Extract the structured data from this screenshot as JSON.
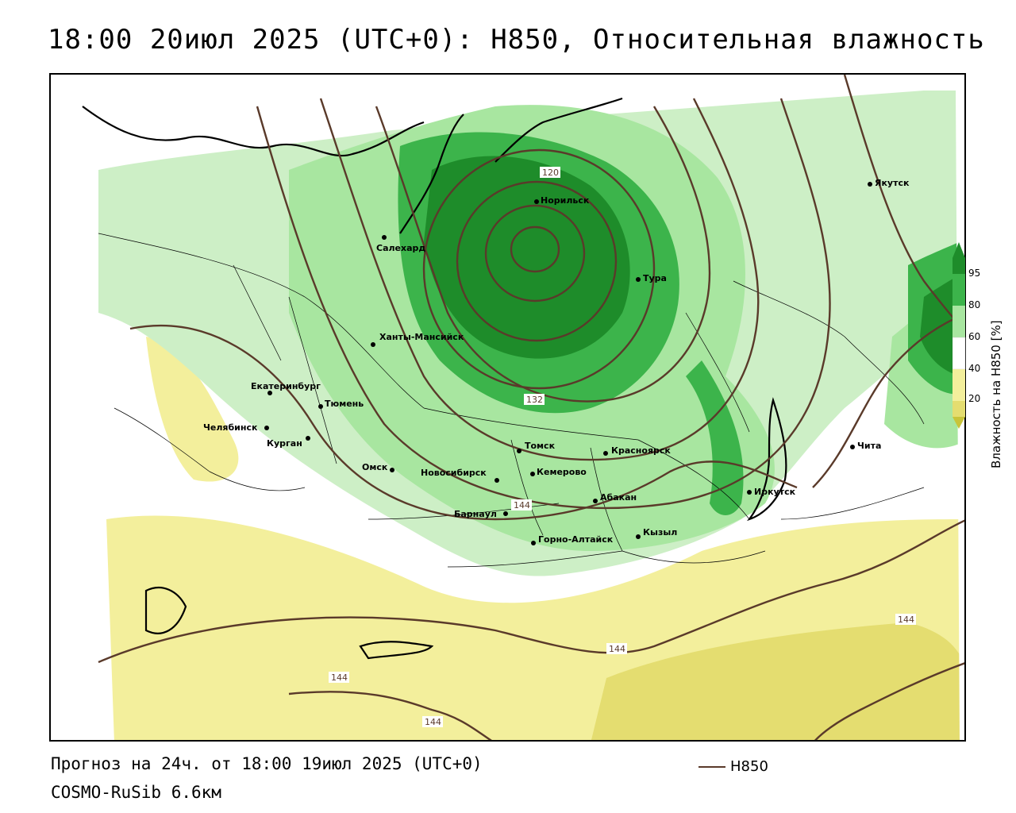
{
  "title": "18:00 20июл 2025 (UTC+0): H850, Относительная влажность",
  "forecast": "Прогноз на 24ч. от 18:00 19июл 2025 (UTC+0)",
  "model": "COSMO-RuSib 6.6км",
  "legend": {
    "label": "H850",
    "line_color": "#5a3a2a"
  },
  "colorbar": {
    "title": "Влажность на H850 [%]",
    "ticks": [
      "95",
      "80",
      "60",
      "40",
      "20"
    ],
    "colors": [
      "#1e8c2a",
      "#3cb44b",
      "#6ccf6a",
      "#a8e6a0",
      "#ffffff",
      "#f5f0b0",
      "#e8e07a",
      "#c8c43a"
    ]
  },
  "colors": {
    "dark_green": "#1e8c2a",
    "mid_green": "#3cb44b",
    "light_green": "#a8e6a0",
    "pale_green": "#cdefc6",
    "yellow": "#f3ef9c",
    "olive_yellow": "#d6d24a",
    "contour": "#5a3a2a"
  },
  "cities": [
    {
      "name": "Норильск"
    },
    {
      "name": "Салехард"
    },
    {
      "name": "Тура"
    },
    {
      "name": "Якутск"
    },
    {
      "name": "Ханты-Мансийск"
    },
    {
      "name": "Екатеринбург"
    },
    {
      "name": "Тюмень"
    },
    {
      "name": "Челябинск"
    },
    {
      "name": "Курган"
    },
    {
      "name": "Омск"
    },
    {
      "name": "Новосибирск"
    },
    {
      "name": "Томск"
    },
    {
      "name": "Кемерово"
    },
    {
      "name": "Красноярск"
    },
    {
      "name": "Абакан"
    },
    {
      "name": "Барнаул"
    },
    {
      "name": "Горно-Алтайск"
    },
    {
      "name": "Кызыл"
    },
    {
      "name": "Иркутск"
    },
    {
      "name": "Чита"
    }
  ],
  "contour_labels": [
    "120",
    "132",
    "144",
    "144",
    "144",
    "144",
    "144"
  ]
}
